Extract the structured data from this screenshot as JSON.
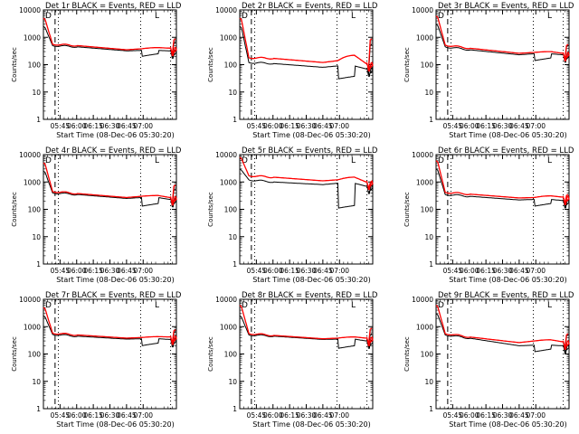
{
  "chart_data": [
    {
      "type": "line",
      "title": "Det 1r BLACK = Events, RED = LLD",
      "ylabel": "Counts/sec",
      "xlabel": "Start Time (08-Dec-06 05:30:20)",
      "yscale": "log",
      "ylim": [
        1,
        10000
      ],
      "yticks": [
        "1",
        "10",
        "100",
        "1000",
        "10000"
      ],
      "xticks": [
        "05:45",
        "06:00",
        "06:15",
        "06:30",
        "06:45",
        "07:00"
      ],
      "corner_labels": {
        "left": "D",
        "right": "L"
      },
      "black": {
        "start": 2500,
        "drop": 500,
        "level_a": 450,
        "level_b": 320,
        "level_c": 330,
        "dip": 200,
        "end": 320,
        "spike": 600
      },
      "red": {
        "start": 5000,
        "drop": 560,
        "level_a": 500,
        "level_b": 350,
        "level_c": 380,
        "bump": 420,
        "end": 400,
        "spike": 800
      }
    },
    {
      "type": "line",
      "title": "Det 2r BLACK = Events, RED = LLD",
      "ylabel": "Counts/sec",
      "xlabel": "Start Time (08-Dec-06 05:30:20)",
      "yscale": "log",
      "ylim": [
        1,
        10000
      ],
      "yticks": [
        "1",
        "10",
        "100",
        "1000",
        "10000"
      ],
      "xticks": [
        "05:45",
        "06:00",
        "06:15",
        "06:30",
        "06:45",
        "07:00"
      ],
      "corner_labels": {
        "left": "D",
        "right": "L"
      },
      "black": {
        "start": 2500,
        "drop": 120,
        "level_a": 110,
        "level_b": 80,
        "level_c": 90,
        "dip": 30,
        "end": 70,
        "spike": 500
      },
      "red": {
        "start": 5000,
        "drop": 180,
        "level_a": 170,
        "level_b": 120,
        "level_c": 140,
        "bump": 220,
        "end": 110,
        "spike": 800
      }
    },
    {
      "type": "line",
      "title": "Det 3r BLACK = Events, RED = LLD",
      "ylabel": "Counts/sec",
      "xlabel": "Start Time (08-Dec-06 05:30:20)",
      "yscale": "log",
      "ylim": [
        1,
        10000
      ],
      "yticks": [
        "1",
        "10",
        "100",
        "1000",
        "10000"
      ],
      "xticks": [
        "05:45",
        "06:00",
        "06:15",
        "06:30",
        "06:45",
        "07:00"
      ],
      "corner_labels": {
        "left": "D",
        "right": "L"
      },
      "black": {
        "start": 3000,
        "drop": 450,
        "level_a": 350,
        "level_b": 230,
        "level_c": 250,
        "dip": 140,
        "end": 230,
        "spike": 450
      },
      "red": {
        "start": 6000,
        "drop": 520,
        "level_a": 400,
        "level_b": 260,
        "level_c": 280,
        "bump": 300,
        "end": 260,
        "spike": 500
      }
    },
    {
      "type": "line",
      "title": "Det 4r BLACK = Events, RED = LLD",
      "ylabel": "Counts/sec",
      "xlabel": "Start Time (08-Dec-06 05:30:20)",
      "yscale": "log",
      "ylim": [
        1,
        10000
      ],
      "yticks": [
        "1",
        "10",
        "100",
        "1000",
        "10000"
      ],
      "xticks": [
        "05:45",
        "06:00",
        "06:15",
        "06:30",
        "06:45",
        "07:00"
      ],
      "corner_labels": {
        "left": "D",
        "right": "L"
      },
      "black": {
        "start": 2500,
        "drop": 400,
        "level_a": 350,
        "level_b": 250,
        "level_c": 270,
        "dip": 130,
        "end": 230,
        "spike": 500
      },
      "red": {
        "start": 5000,
        "drop": 450,
        "level_a": 380,
        "level_b": 270,
        "level_c": 300,
        "bump": 320,
        "end": 270,
        "spike": 700
      }
    },
    {
      "type": "line",
      "title": "Det 5r BLACK = Events, RED = LLD",
      "ylabel": "Counts/sec",
      "xlabel": "Start Time (08-Dec-06 05:30:20)",
      "yscale": "log",
      "ylim": [
        1,
        10000
      ],
      "yticks": [
        "1",
        "10",
        "100",
        "1000",
        "10000"
      ],
      "xticks": [
        "05:45",
        "06:00",
        "06:15",
        "06:30",
        "06:45",
        "07:00"
      ],
      "corner_labels": {
        "left": "D",
        "right": "L"
      },
      "black": {
        "start": 3000,
        "drop": 1200,
        "level_a": 1000,
        "level_b": 800,
        "level_c": 900,
        "dip": 110,
        "end": 700,
        "spike": 500
      },
      "red": {
        "start": 8000,
        "drop": 1700,
        "level_a": 1500,
        "level_b": 1100,
        "level_c": 1200,
        "bump": 1500,
        "end": 1000,
        "spike": 900
      }
    },
    {
      "type": "line",
      "title": "Det 6r BLACK = Events, RED = LLD",
      "ylabel": "Counts/sec",
      "xlabel": "Start Time (08-Dec-06 05:30:20)",
      "yscale": "log",
      "ylim": [
        1,
        10000
      ],
      "yticks": [
        "1",
        "10",
        "100",
        "1000",
        "10000"
      ],
      "xticks": [
        "05:45",
        "06:00",
        "06:15",
        "06:30",
        "06:45",
        "07:00"
      ],
      "corner_labels": {
        "left": "D",
        "right": "L"
      },
      "black": {
        "start": 3000,
        "drop": 350,
        "level_a": 300,
        "level_b": 220,
        "level_c": 230,
        "dip": 130,
        "end": 210,
        "spike": 200
      },
      "red": {
        "start": 6000,
        "drop": 420,
        "level_a": 360,
        "level_b": 260,
        "level_c": 270,
        "bump": 310,
        "end": 280,
        "spike": 320
      }
    },
    {
      "type": "line",
      "title": "Det 7r BLACK = Events, RED = LLD",
      "ylabel": "Counts/sec",
      "xlabel": "Start Time (08-Dec-06 05:30:20)",
      "yscale": "log",
      "ylim": [
        1,
        10000
      ],
      "yticks": [
        "1",
        "10",
        "100",
        "1000",
        "10000"
      ],
      "xticks": [
        "05:45",
        "06:00",
        "06:15",
        "06:30",
        "06:45",
        "07:00"
      ],
      "corner_labels": {
        "left": "D",
        "right": "L"
      },
      "black": {
        "start": 2500,
        "drop": 520,
        "level_a": 450,
        "level_b": 350,
        "level_c": 360,
        "dip": 200,
        "end": 340,
        "spike": 600
      },
      "red": {
        "start": 5000,
        "drop": 580,
        "level_a": 500,
        "level_b": 380,
        "level_c": 400,
        "bump": 430,
        "end": 420,
        "spike": 700
      }
    },
    {
      "type": "line",
      "title": "Det 8r BLACK = Events, RED = LLD",
      "ylabel": "Counts/sec",
      "xlabel": "Start Time (08-Dec-06 05:30:20)",
      "yscale": "log",
      "ylim": [
        1,
        10000
      ],
      "yticks": [
        "1",
        "10",
        "100",
        "1000",
        "10000"
      ],
      "xticks": [
        "05:45",
        "06:00",
        "06:15",
        "06:30",
        "06:45",
        "07:00"
      ],
      "corner_labels": {
        "left": "D",
        "right": "L"
      },
      "black": {
        "start": 2500,
        "drop": 500,
        "level_a": 450,
        "level_b": 340,
        "level_c": 350,
        "dip": 160,
        "end": 300,
        "spike": 500
      },
      "red": {
        "start": 6000,
        "drop": 560,
        "level_a": 480,
        "level_b": 360,
        "level_c": 380,
        "bump": 420,
        "end": 380,
        "spike": 800
      }
    },
    {
      "type": "line",
      "title": "Det 9r BLACK = Events, RED = LLD",
      "ylabel": "Counts/sec",
      "xlabel": "Start Time (08-Dec-06 05:30:20)",
      "yscale": "log",
      "ylim": [
        1,
        10000
      ],
      "yticks": [
        "1",
        "10",
        "100",
        "1000",
        "10000"
      ],
      "xticks": [
        "05:45",
        "06:00",
        "06:15",
        "06:30",
        "06:45",
        "07:00"
      ],
      "corner_labels": {
        "left": "D",
        "right": "L"
      },
      "black": {
        "start": 3000,
        "drop": 500,
        "level_a": 380,
        "level_b": 200,
        "level_c": 210,
        "dip": 120,
        "end": 200,
        "spike": 450
      },
      "red": {
        "start": 6000,
        "drop": 560,
        "level_a": 420,
        "level_b": 260,
        "level_c": 300,
        "bump": 330,
        "end": 280,
        "spike": 500
      }
    }
  ],
  "colors": {
    "events": "#000000",
    "lld": "#ff0000",
    "axes": "#000000",
    "background": "#ffffff"
  }
}
